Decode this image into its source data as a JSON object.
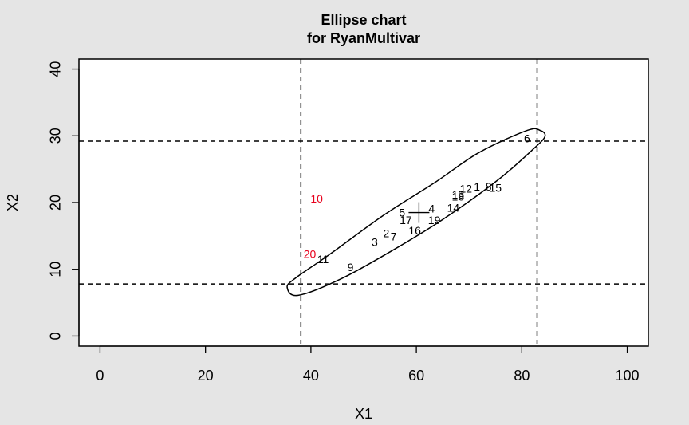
{
  "chart_data": {
    "type": "scatter",
    "title": "Ellipse chart",
    "subtitle": "for RyanMultivar",
    "xlabel": "X1",
    "ylabel": "X2",
    "xlim": [
      -4,
      104
    ],
    "ylim": [
      -1.5,
      41.5
    ],
    "xticks": [
      0,
      20,
      40,
      60,
      80,
      100
    ],
    "yticks": [
      0,
      10,
      20,
      30,
      40
    ],
    "grid": false,
    "limits": {
      "x_lower": 38.1,
      "x_upper": 82.9,
      "y_lower": 7.8,
      "y_upper": 29.2
    },
    "center": {
      "x": 60.5,
      "y": 18.5
    },
    "ellipse": [
      [
        35.5,
        7.3
      ],
      [
        37.6,
        6.1
      ],
      [
        45.8,
        8.6
      ],
      [
        55.4,
        12.8
      ],
      [
        65.1,
        17.5
      ],
      [
        75.5,
        23.4
      ],
      [
        82.3,
        28.1
      ],
      [
        84.4,
        29.9
      ],
      [
        83.5,
        30.8
      ],
      [
        81.0,
        30.8
      ],
      [
        71.9,
        27.5
      ],
      [
        63.5,
        23.0
      ],
      [
        53.8,
        18.1
      ],
      [
        43.5,
        12.2
      ],
      [
        37.1,
        8.7
      ],
      [
        35.5,
        7.3
      ]
    ],
    "points": [
      {
        "label": "1",
        "x": 71.5,
        "y": 22.4,
        "color": "#000000"
      },
      {
        "label": "2",
        "x": 54.3,
        "y": 15.4,
        "color": "#000000"
      },
      {
        "label": "3",
        "x": 52.1,
        "y": 14.1,
        "color": "#000000"
      },
      {
        "label": "4",
        "x": 62.9,
        "y": 19.1,
        "color": "#000000"
      },
      {
        "label": "5",
        "x": 57.3,
        "y": 18.5,
        "color": "#000000"
      },
      {
        "label": "6",
        "x": 81.0,
        "y": 29.6,
        "color": "#000000"
      },
      {
        "label": "7",
        "x": 55.7,
        "y": 14.9,
        "color": "#000000"
      },
      {
        "label": "8",
        "x": 73.7,
        "y": 22.4,
        "color": "#000000"
      },
      {
        "label": "9",
        "x": 47.5,
        "y": 10.3,
        "color": "#000000"
      },
      {
        "label": "10",
        "x": 41.1,
        "y": 20.6,
        "color": "#e8001c"
      },
      {
        "label": "11",
        "x": 42.3,
        "y": 11.5,
        "color": "#000000"
      },
      {
        "label": "12",
        "x": 69.4,
        "y": 22.1,
        "color": "#000000"
      },
      {
        "label": "13",
        "x": 67.9,
        "y": 21.2,
        "color": "#000000"
      },
      {
        "label": "14",
        "x": 67.0,
        "y": 19.2,
        "color": "#000000"
      },
      {
        "label": "15",
        "x": 75.0,
        "y": 22.2,
        "color": "#000000"
      },
      {
        "label": "16",
        "x": 59.7,
        "y": 15.8,
        "color": "#000000"
      },
      {
        "label": "17",
        "x": 58.0,
        "y": 17.4,
        "color": "#000000"
      },
      {
        "label": "18",
        "x": 67.9,
        "y": 20.9,
        "color": "#000000"
      },
      {
        "label": "19",
        "x": 63.4,
        "y": 17.4,
        "color": "#000000"
      },
      {
        "label": "20",
        "x": 39.8,
        "y": 12.3,
        "color": "#e8001c"
      }
    ]
  }
}
